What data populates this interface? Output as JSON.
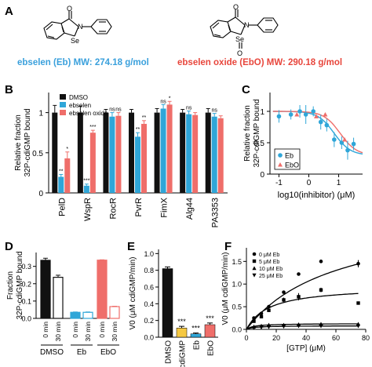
{
  "figure": {
    "panel_labels": {
      "A": "A",
      "B": "B",
      "C": "C",
      "D": "D",
      "E": "E",
      "F": "F"
    },
    "colors": {
      "dmso": "#111111",
      "ebselen": "#2fa6d8",
      "ebselen_oxide": "#ef6e6a",
      "caption_blue": "#3aa0dc",
      "caption_red": "#e8463c"
    },
    "panel_A": {
      "eb_caption": "ebselen (Eb)  MW: 274.18 g/mol",
      "ebo_caption": "ebselen oxide (EbO)  MW: 290.18 g/mol",
      "eb_atoms": {
        "o": "O",
        "n": "N",
        "se": "Se"
      },
      "ebo_atoms": {
        "o": "O",
        "n": "N",
        "se": "Se",
        "o2": "O"
      }
    }
  },
  "chart_data": [
    {
      "panel": "B",
      "type": "bar",
      "ylabel": "Relative fraction",
      "ylabel2": "32P-cdiGMP bound",
      "ylim": [
        0,
        1.25
      ],
      "yticks": [
        "0",
        "0.5",
        "1"
      ],
      "legend": [
        "DMSO",
        "ebselen",
        "ebselen oxide"
      ],
      "categories": [
        "PelD",
        "WspR",
        "RocR",
        "PvrR",
        "FimX",
        "Alg44",
        "PA3353"
      ],
      "series": [
        {
          "name": "DMSO",
          "values": [
            1.0,
            1.0,
            1.0,
            1.0,
            1.0,
            1.0,
            1.0
          ],
          "err": [
            0.09,
            0.08,
            0.04,
            0.04,
            0.05,
            0.04,
            0.05
          ]
        },
        {
          "name": "ebselen",
          "values": [
            0.2,
            0.09,
            0.95,
            0.7,
            1.05,
            0.98,
            0.95
          ],
          "err": [
            0.03,
            0.02,
            0.05,
            0.05,
            0.05,
            0.04,
            0.04
          ]
        },
        {
          "name": "ebselen oxide",
          "values": [
            0.43,
            0.75,
            0.96,
            0.86,
            1.1,
            0.97,
            0.93
          ],
          "err": [
            0.08,
            0.03,
            0.04,
            0.04,
            0.04,
            0.03,
            0.03
          ]
        }
      ],
      "annotations": [
        {
          "category": "PelD",
          "series": "ebselen",
          "text": "**"
        },
        {
          "category": "PelD",
          "series": "ebselen oxide",
          "text": "*"
        },
        {
          "category": "WspR",
          "series": "ebselen",
          "text": "***"
        },
        {
          "category": "WspR",
          "series": "ebselen oxide",
          "text": "***"
        },
        {
          "category": "RocR",
          "series": "ebselen",
          "text": "ns"
        },
        {
          "category": "RocR",
          "series": "ebselen oxide",
          "text": "ns"
        },
        {
          "category": "PvrR",
          "series": "ebselen",
          "text": "**"
        },
        {
          "category": "PvrR",
          "series": "ebselen oxide",
          "text": "**"
        },
        {
          "category": "FimX",
          "series": "ebselen",
          "text": "ns"
        },
        {
          "category": "FimX",
          "series": "ebselen oxide",
          "text": "*"
        },
        {
          "category": "Alg44",
          "series": "ebselen",
          "text": "ns"
        },
        {
          "category": "PA3353",
          "series": "ebselen",
          "text": "ns"
        }
      ]
    },
    {
      "panel": "C",
      "type": "scatter",
      "xlabel": "log10(inhibitor) (μM)",
      "ylabel": "Relative fraction",
      "ylabel2": "32P-cdiGMP bound",
      "xlim": [
        -1.3,
        1.8
      ],
      "ylim": [
        0,
        1.3
      ],
      "xticks": [
        "-1",
        "0",
        "1"
      ],
      "yticks": [
        "0",
        "0.5",
        "1"
      ],
      "legend": [
        "Eb",
        "EbO"
      ],
      "series": [
        {
          "name": "Eb",
          "x": [
            -1.0,
            -0.6,
            -0.3,
            -0.1,
            0.15,
            0.4,
            0.6,
            0.85,
            1.1,
            1.3,
            1.5
          ],
          "y": [
            0.92,
            0.95,
            1.0,
            0.95,
            1.0,
            0.83,
            0.78,
            0.55,
            0.5,
            0.38,
            0.48
          ],
          "err": [
            0.1,
            0.08,
            0.1,
            0.15,
            0.08,
            0.12,
            0.1,
            0.12,
            0.1,
            0.15,
            0.1
          ]
        },
        {
          "name": "EbO",
          "x": [
            -0.4,
            0.25,
            0.55,
            1.2
          ],
          "y": [
            0.95,
            0.92,
            0.95,
            0.55
          ],
          "err": [
            0.0,
            0.0,
            0.0,
            0.0
          ]
        }
      ],
      "fits": [
        {
          "name": "Eb",
          "top": 1.0,
          "bottom": 0.3,
          "logIC50": 0.85,
          "hill": 1.6
        },
        {
          "name": "EbO",
          "top": 1.0,
          "bottom": 0.3,
          "logIC50": 1.05,
          "hill": 1.6
        }
      ]
    },
    {
      "panel": "D",
      "type": "bar",
      "ylabel": "Fraction",
      "ylabel2": "32P-cdiGMP bound",
      "ylim": [
        0,
        0.38
      ],
      "yticks": [
        "0.0",
        "0.1",
        "0.2",
        "0.3"
      ],
      "categories": [
        "0 min",
        "30 min",
        "0 min",
        "30 min",
        "0 min",
        "30 min"
      ],
      "groups": [
        "DMSO",
        "Eb",
        "EbO"
      ],
      "values": [
        0.335,
        0.237,
        0.035,
        0.035,
        0.336,
        0.068
      ],
      "err": [
        0.012,
        0.012,
        0.002,
        0.002,
        0.002,
        0.002
      ],
      "fill": [
        "solid",
        "open",
        "solid",
        "open",
        "solid",
        "open"
      ],
      "series_color": [
        "dmso",
        "dmso",
        "ebselen",
        "ebselen",
        "ebselen_oxide",
        "ebselen_oxide"
      ]
    },
    {
      "panel": "E",
      "type": "bar",
      "ylabel": "V0 (μM cdiGMP/min)",
      "ylim": [
        0,
        1.05
      ],
      "yticks": [
        "0.0",
        "0.2",
        "0.4",
        "0.6",
        "0.8",
        "1.0"
      ],
      "categories": [
        "DMSO",
        "cdiGMP",
        "Eb",
        "EbO"
      ],
      "values": [
        0.82,
        0.11,
        0.04,
        0.15
      ],
      "err": [
        0.02,
        0.02,
        0.01,
        0.02
      ],
      "bar_colors": [
        "#111111",
        "#f5c842",
        "#2fa6d8",
        "#ef6e6a"
      ],
      "annotations": [
        "",
        "***",
        "***",
        "***"
      ]
    },
    {
      "panel": "F",
      "type": "scatter",
      "xlabel": "[GTP] (μM)",
      "ylabel": "V0 (μM cdiGMP/min)",
      "xlim": [
        0,
        80
      ],
      "ylim": [
        0,
        1.8
      ],
      "xticks": [
        "0",
        "20",
        "40",
        "60",
        "80"
      ],
      "yticks": [
        "0.0",
        "0.5",
        "1.0",
        "1.5"
      ],
      "legend": [
        "0 μM Eb",
        "5 μM Eb",
        "10 μM Eb",
        "25 μM Eb"
      ],
      "series": [
        {
          "name": "0 μM Eb",
          "x": [
            5,
            10,
            15,
            25,
            35,
            50,
            75
          ],
          "y": [
            0.25,
            0.35,
            0.5,
            0.82,
            1.22,
            1.5,
            1.45
          ],
          "err": [
            0,
            0,
            0,
            0,
            0,
            0,
            0.08
          ]
        },
        {
          "name": "5 μM Eb",
          "x": [
            5,
            10,
            15,
            25,
            35,
            50,
            75
          ],
          "y": [
            0.18,
            0.28,
            0.42,
            0.65,
            0.72,
            0.87,
            0.58
          ],
          "err": [
            0,
            0,
            0,
            0.05,
            0.08,
            0.05,
            0.03
          ]
        },
        {
          "name": "10 μM Eb",
          "x": [
            5,
            10,
            15,
            25,
            35,
            50,
            75
          ],
          "y": [
            0.06,
            0.08,
            0.1,
            0.1,
            0.11,
            0.12,
            0.12
          ],
          "err": [
            0,
            0,
            0,
            0,
            0,
            0,
            0
          ]
        },
        {
          "name": "25 μM Eb",
          "x": [
            5,
            10,
            15,
            25,
            35,
            50,
            75
          ],
          "y": [
            0.03,
            0.04,
            0.05,
            0.06,
            0.07,
            0.07,
            0.07
          ],
          "err": [
            0,
            0,
            0,
            0,
            0,
            0,
            0
          ]
        }
      ],
      "fits": [
        {
          "name": "0 μM Eb",
          "vmax": 2.6,
          "km": 60
        },
        {
          "name": "5 μM Eb",
          "vmax": 0.95,
          "km": 15
        },
        {
          "name": "10 μM Eb",
          "vmax": 0.13,
          "km": 5
        },
        {
          "name": "25 μM Eb",
          "vmax": 0.08,
          "km": 5
        }
      ]
    }
  ]
}
